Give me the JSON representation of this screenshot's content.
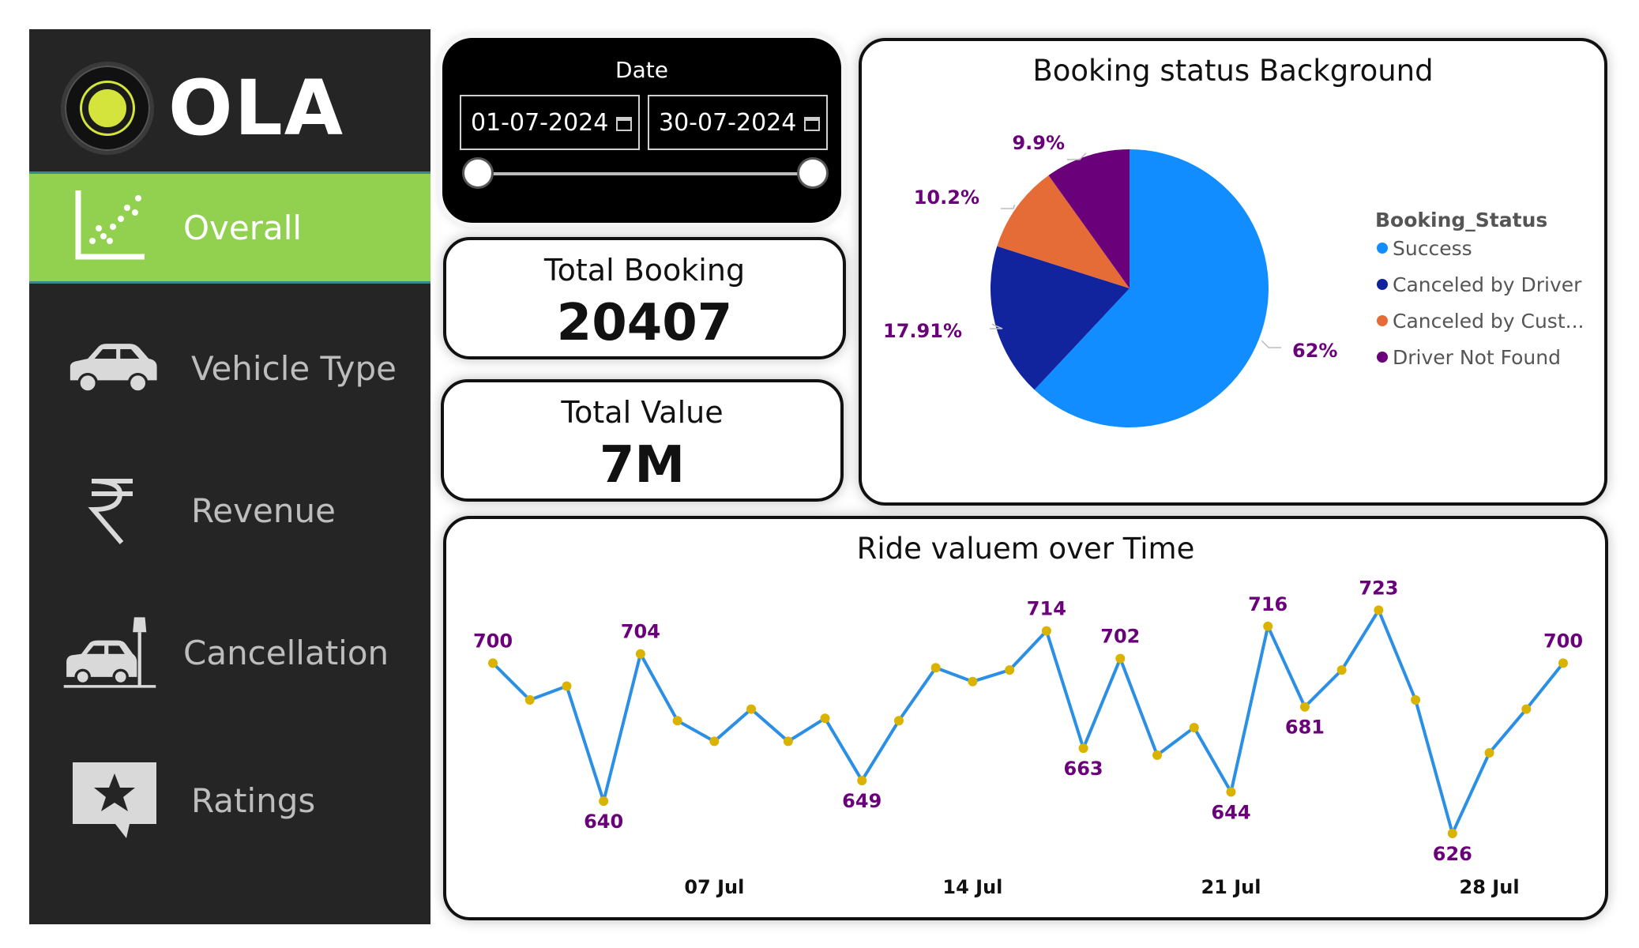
{
  "app": {
    "brand": "OLA"
  },
  "sidebar": {
    "items": [
      {
        "label": "Overall",
        "icon": "scatter-chart-icon",
        "active": true
      },
      {
        "label": "Vehicle Type",
        "icon": "car-icon",
        "active": false
      },
      {
        "label": "Revenue",
        "icon": "rupee-icon",
        "active": false
      },
      {
        "label": "Cancellation",
        "icon": "car-crash-icon",
        "active": false
      },
      {
        "label": "Ratings",
        "icon": "star-comment-icon",
        "active": false
      }
    ]
  },
  "date_filter": {
    "title": "Date",
    "start": "01-07-2024",
    "end": "30-07-2024"
  },
  "kpis": {
    "total_booking": {
      "label": "Total Booking",
      "value": "20407"
    },
    "total_value": {
      "label": "Total Value",
      "value": "7M"
    }
  },
  "colors": {
    "sidebar_bg": "#252525",
    "active_nav": "#92d050",
    "success": "#118dff",
    "canceled_driver": "#12239e",
    "canceled_customer": "#e66c37",
    "driver_not_found": "#6b007b",
    "line": "#2b8fe5",
    "marker": "#d9b300",
    "label": "#6b007b"
  },
  "chart_data": [
    {
      "type": "pie",
      "title": "Booking status Background",
      "legend_title": "Booking_Status",
      "legend_position": "right",
      "slices": [
        {
          "name": "Success",
          "legend_label": "Success",
          "value": 62,
          "label": "62%",
          "color": "#118dff"
        },
        {
          "name": "Canceled by Driver",
          "legend_label": "Canceled by Driver",
          "value": 17.91,
          "label": "17.91%",
          "color": "#12239e"
        },
        {
          "name": "Canceled by Customer",
          "legend_label": "Canceled by Cust...",
          "value": 10.2,
          "label": "10.2%",
          "color": "#e66c37"
        },
        {
          "name": "Driver Not Found",
          "legend_label": "Driver Not Found",
          "value": 9.9,
          "label": "9.9%",
          "color": "#6b007b"
        }
      ]
    },
    {
      "type": "line",
      "title": "Ride valuem over Time",
      "x": [
        "01 Jul",
        "02 Jul",
        "03 Jul",
        "04 Jul",
        "05 Jul",
        "06 Jul",
        "07 Jul",
        "08 Jul",
        "09 Jul",
        "10 Jul",
        "11 Jul",
        "12 Jul",
        "13 Jul",
        "14 Jul",
        "15 Jul",
        "16 Jul",
        "17 Jul",
        "18 Jul",
        "19 Jul",
        "20 Jul",
        "21 Jul",
        "22 Jul",
        "23 Jul",
        "24 Jul",
        "25 Jul",
        "26 Jul",
        "27 Jul",
        "28 Jul",
        "29 Jul",
        "30 Jul"
      ],
      "values": [
        700,
        684,
        690,
        640,
        704,
        675,
        666,
        680,
        666,
        676,
        649,
        675,
        698,
        692,
        697,
        714,
        663,
        702,
        660,
        672,
        644,
        716,
        681,
        697,
        723,
        684,
        626,
        661,
        680,
        700
      ],
      "labeled_points": [
        {
          "index": 0,
          "label": "700"
        },
        {
          "index": 3,
          "label": "640"
        },
        {
          "index": 4,
          "label": "704"
        },
        {
          "index": 10,
          "label": "649"
        },
        {
          "index": 15,
          "label": "714"
        },
        {
          "index": 16,
          "label": "663"
        },
        {
          "index": 17,
          "label": "702"
        },
        {
          "index": 20,
          "label": "644"
        },
        {
          "index": 21,
          "label": "716"
        },
        {
          "index": 22,
          "label": "681"
        },
        {
          "index": 24,
          "label": "723"
        },
        {
          "index": 26,
          "label": "626"
        },
        {
          "index": 29,
          "label": "700"
        }
      ],
      "x_ticks": [
        {
          "index": 6,
          "label": "07 Jul"
        },
        {
          "index": 13,
          "label": "14 Jul"
        },
        {
          "index": 20,
          "label": "21 Jul"
        },
        {
          "index": 27,
          "label": "28 Jul"
        }
      ],
      "ylim": [
        615,
        730
      ]
    }
  ]
}
